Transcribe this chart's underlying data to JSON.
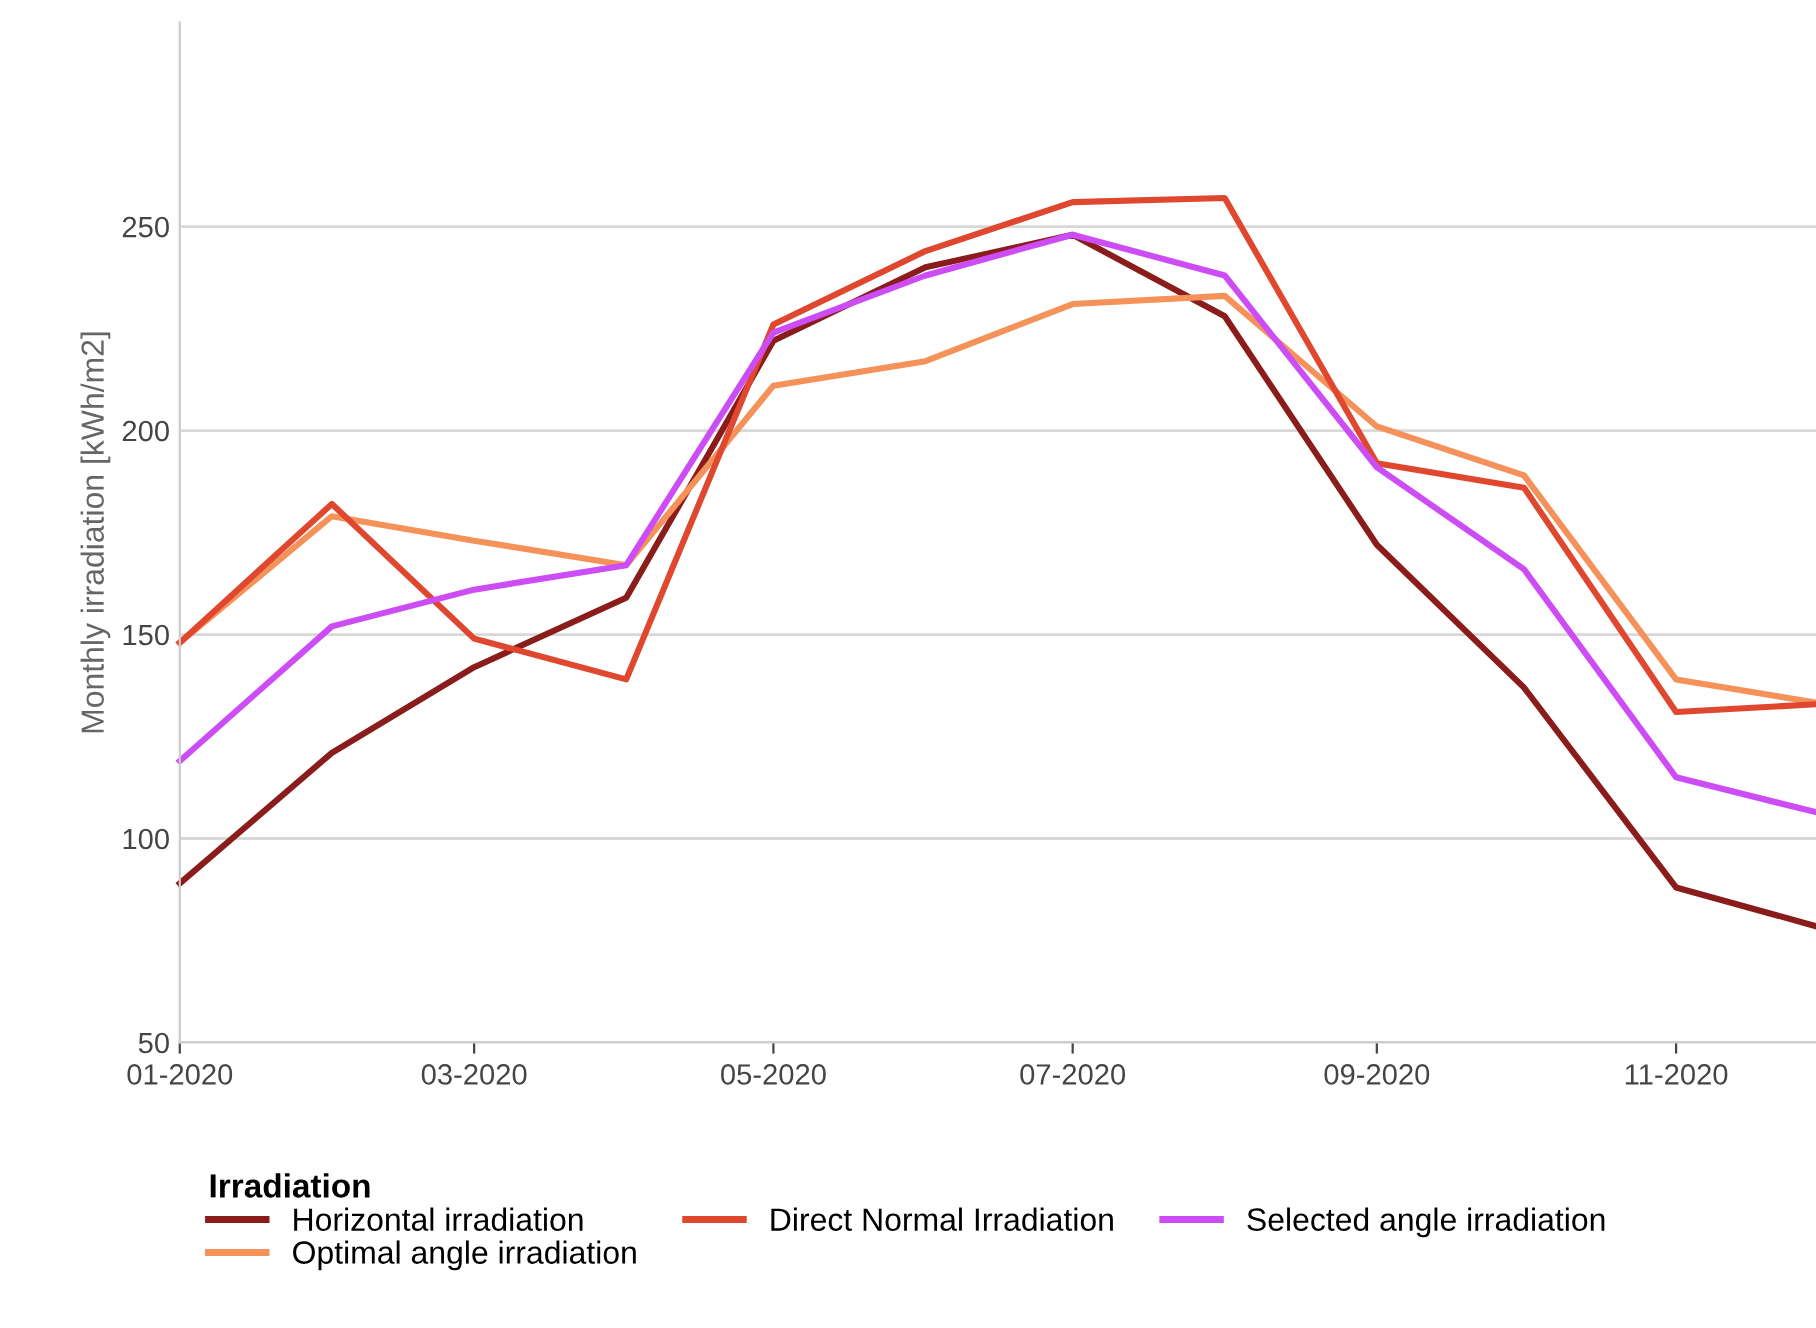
{
  "chart_data": {
    "type": "line",
    "ylabel": "Monthly irradiation [kWh/m2]",
    "legend_title": "Irradiation",
    "legend": "bottom",
    "grid": "y",
    "marker": "none",
    "line_style": "solid",
    "x": [
      "2020-01",
      "2020-02",
      "2020-03",
      "2020-04",
      "2020-05",
      "2020-06",
      "2020-07",
      "2020-08",
      "2020-09",
      "2020-10",
      "2020-11",
      "2020-12"
    ],
    "xlim": [
      "2020-01",
      "2020-12"
    ],
    "xticks": [
      {
        "value": "2020-01",
        "label": "01-2020"
      },
      {
        "value": "2020-03",
        "label": "03-2020"
      },
      {
        "value": "2020-05",
        "label": "05-2020"
      },
      {
        "value": "2020-07",
        "label": "07-2020"
      },
      {
        "value": "2020-09",
        "label": "09-2020"
      },
      {
        "value": "2020-11",
        "label": "11-2020"
      }
    ],
    "ylim": [
      50,
      300
    ],
    "yticks": [
      50,
      100,
      150,
      200,
      250
    ],
    "series": [
      {
        "name": "Horizontal irradiation",
        "color": "#8b1c1c",
        "values": [
          89,
          121,
          142,
          159,
          222,
          240,
          248,
          228,
          172,
          137,
          88,
          78
        ]
      },
      {
        "name": "Optimal angle irradiation",
        "color": "#f4925a",
        "values": [
          148,
          179,
          173,
          167,
          211,
          217,
          231,
          233,
          201,
          189,
          139,
          133
        ]
      },
      {
        "name": "Direct Normal Irradiation",
        "color": "#e0472f",
        "values": [
          148,
          182,
          149,
          139,
          226,
          244,
          256,
          257,
          192,
          186,
          131,
          133
        ]
      },
      {
        "name": "Selected angle irradiation",
        "color": "#cc4cf5",
        "values": [
          119,
          152,
          161,
          167,
          224,
          238,
          248,
          238,
          191,
          166,
          115,
          106
        ]
      }
    ]
  }
}
